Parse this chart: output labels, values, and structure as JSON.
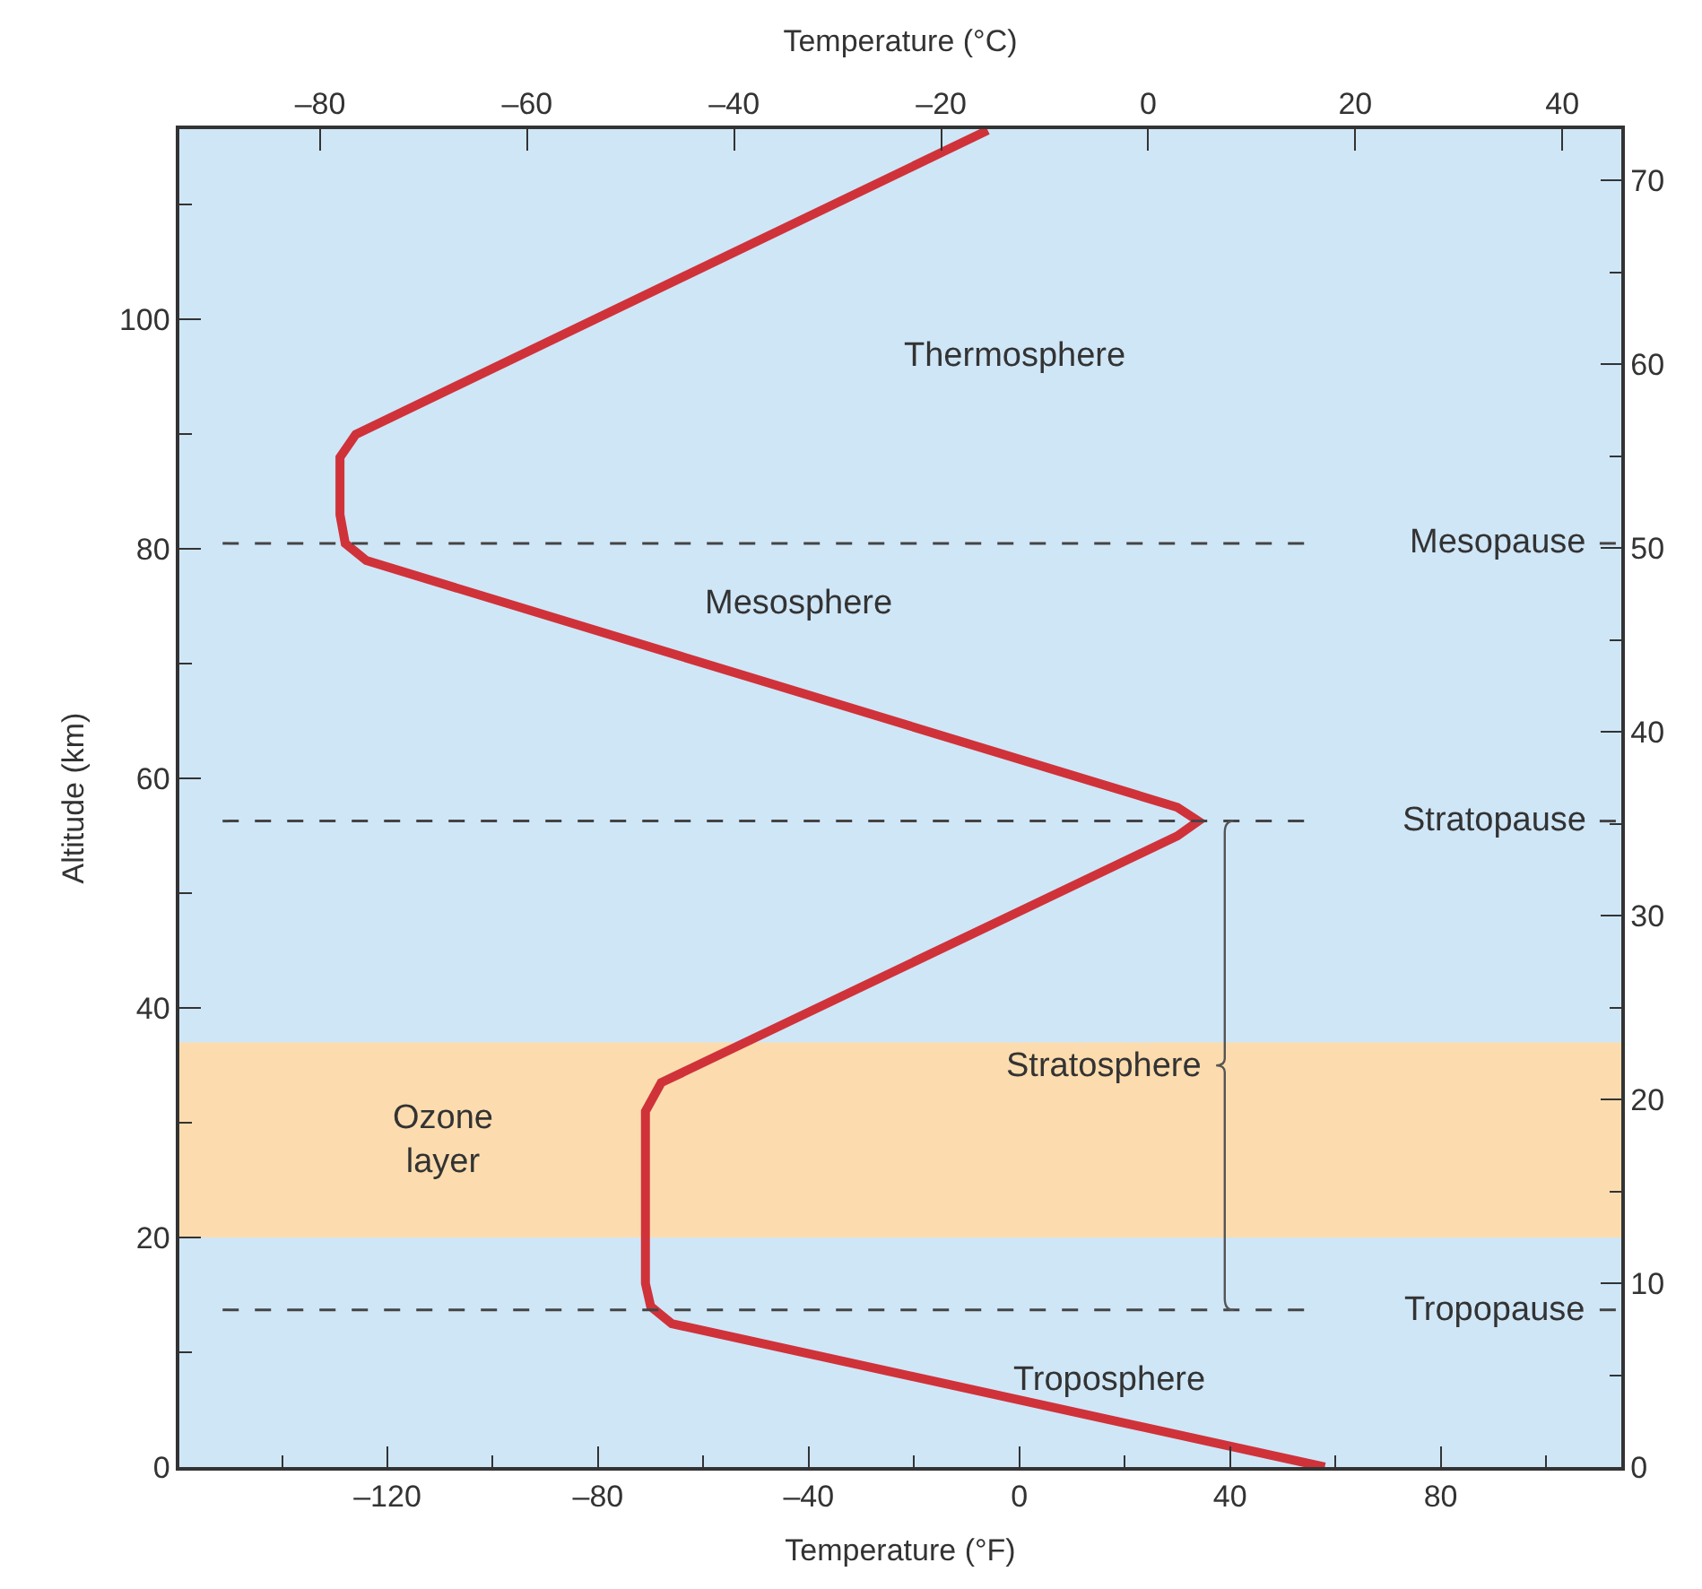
{
  "chart_data": {
    "type": "line",
    "xlabel": "Temperature (°F)",
    "ylabel": "Altitude (km)",
    "x2label": "Temperature (°C)",
    "x": [
      58,
      -66,
      -70,
      -71,
      -71,
      -68,
      30,
      34,
      30,
      -124,
      -128,
      -129,
      -129,
      -126,
      -6
    ],
    "series": [
      {
        "color": "#d0323a",
        "values": [
          0,
          12.5,
          14,
          16,
          31,
          33.5,
          55,
          56.3,
          57.5,
          79,
          80.5,
          83,
          88,
          90,
          116.5
        ]
      }
    ],
    "xlim": [
      -159.5,
      114.3
    ],
    "xticks": [
      {
        "value": -120,
        "label": "–120"
      },
      {
        "value": -80,
        "label": "–80"
      },
      {
        "value": -40,
        "label": "–40"
      },
      0,
      40,
      80
    ],
    "x2lim": [
      -93.6,
      45.7
    ],
    "x2ticks": [
      {
        "value": -80,
        "label": "–80"
      },
      {
        "value": -60,
        "label": "–60"
      },
      {
        "value": -40,
        "label": "–40"
      },
      {
        "value": -20,
        "label": "–20"
      },
      0,
      20,
      40
    ],
    "ylim": [
      0,
      116.6
    ],
    "yticks": [
      0,
      20,
      40,
      60,
      80,
      100
    ],
    "y2lim": [
      0,
      72.8
    ],
    "y2ticks": [
      0,
      10,
      20,
      30,
      40,
      50,
      60,
      70
    ],
    "ref_lines": [
      {
        "axis": "y",
        "value": 80.5,
        "label": "Mesopause",
        "color": "#444444",
        "line_style": "dashed"
      },
      {
        "axis": "y",
        "value": 56.3,
        "label": "Stratopause",
        "color": "#444444",
        "line_style": "dashed"
      },
      {
        "axis": "y",
        "value": 13.7,
        "label": "Tropopause",
        "color": "#444444",
        "line_style": "dashed"
      }
    ],
    "bands": [
      {
        "axis": "y",
        "from": 20,
        "to": 37,
        "label": "Ozone layer",
        "color": "#fcdcae"
      }
    ],
    "annotations": [
      "Thermosphere",
      "Mesosphere",
      "Troposphere",
      "Stratosphere"
    ],
    "grid": false,
    "marker": "none",
    "line_style": "solid"
  }
}
